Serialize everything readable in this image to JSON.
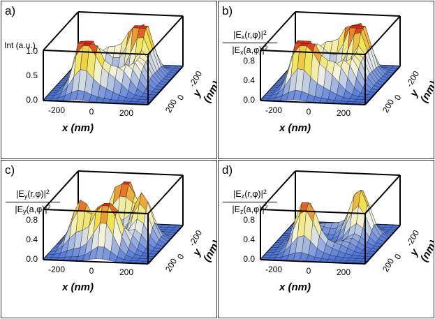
{
  "colors": {
    "floor": "#4a72d8",
    "mid": "#f4f4e6",
    "peak_low": "#f0e24a",
    "peak_high": "#e02a14",
    "frame": "#000000",
    "mesh": "#1c1c1c"
  },
  "chart_data": [
    {
      "type": "surface",
      "panel": "a)",
      "zlabel": "Int (a.u.)",
      "zticks": [
        "1.0",
        "0.5",
        "0.0"
      ],
      "zlim": [
        0,
        1.0
      ],
      "xlabel": "x (nm)",
      "xticks": [
        "-200",
        "0",
        "200"
      ],
      "ylabel": "y (nm)",
      "yticks": [
        "-200",
        "0",
        "200"
      ],
      "xlim": [
        -300,
        300
      ],
      "ylim": [
        -300,
        300
      ],
      "description_of_field": "total intensity with two side lobes and central rim",
      "lobes": [
        {
          "x": -110,
          "y": 160,
          "peak": 1.0
        },
        {
          "x": 120,
          "y": -150,
          "peak": 0.95
        }
      ],
      "rim_radius_nm": 160,
      "rim_height": 0.55
    },
    {
      "type": "surface",
      "panel": "b)",
      "zlabel_num": [
        "|E",
        "x",
        "(r,φ)|",
        "2"
      ],
      "zlabel_den": [
        "|E",
        "x",
        "(a,φ)|",
        "2"
      ],
      "zticks": [
        "0.8",
        "0.4",
        "0.0"
      ],
      "zlim": [
        0,
        1.0
      ],
      "xlabel": "x (nm)",
      "xticks": [
        "-200",
        "0",
        "200"
      ],
      "ylabel": "y (nm)",
      "yticks": [
        "-200",
        "0",
        "200"
      ],
      "xlim": [
        -300,
        300
      ],
      "ylim": [
        -300,
        300
      ],
      "lobes": [
        {
          "x": -110,
          "y": 160,
          "peak": 1.0
        },
        {
          "x": 120,
          "y": -150,
          "peak": 0.95
        }
      ],
      "rim_radius_nm": 160,
      "rim_height": 0.65
    },
    {
      "type": "surface",
      "panel": "c)",
      "zlabel_num": [
        "|E",
        "y",
        "(r,φ)|",
        "2"
      ],
      "zlabel_den": [
        "|E",
        "y",
        "(a,φ)|",
        "2"
      ],
      "zticks": [
        "0.8",
        "0.4",
        "0.0"
      ],
      "zlim": [
        0,
        1.0
      ],
      "xlabel": "x (nm)",
      "xticks": [
        "-200",
        "0",
        "200"
      ],
      "ylabel": "y (nm)",
      "yticks": [
        "-200",
        "0",
        "200"
      ],
      "xlim": [
        -300,
        300
      ],
      "ylim": [
        -300,
        300
      ],
      "lobes": [
        {
          "x": -150,
          "y": 120,
          "peak": 0.75
        },
        {
          "x": 20,
          "y": 170,
          "peak": 1.0
        },
        {
          "x": 150,
          "y": -40,
          "peak": 0.7
        },
        {
          "x": 10,
          "y": -160,
          "peak": 0.95
        }
      ],
      "rim_radius_nm": 165,
      "rim_height": 0.3
    },
    {
      "type": "surface",
      "panel": "d)",
      "zlabel_num": [
        "|E",
        "z",
        "(r,φ)|",
        "2"
      ],
      "zlabel_den": [
        "|E",
        "z",
        "(a,φ)|",
        "2"
      ],
      "zticks": [
        "0.8",
        "0.4",
        "0.0"
      ],
      "zlim": [
        0,
        1.0
      ],
      "xlabel": "x (nm)",
      "xticks": [
        "-200",
        "0",
        "200"
      ],
      "ylabel": "y (nm)",
      "yticks": [
        "-200",
        "0",
        "200"
      ],
      "xlim": [
        -300,
        300
      ],
      "ylim": [
        -300,
        300
      ],
      "lobes": [
        {
          "x": -90,
          "y": 150,
          "peak": 1.0
        },
        {
          "x": 140,
          "y": -90,
          "peak": 0.85
        }
      ],
      "rim_radius_nm": 160,
      "rim_height": 0.2
    }
  ]
}
